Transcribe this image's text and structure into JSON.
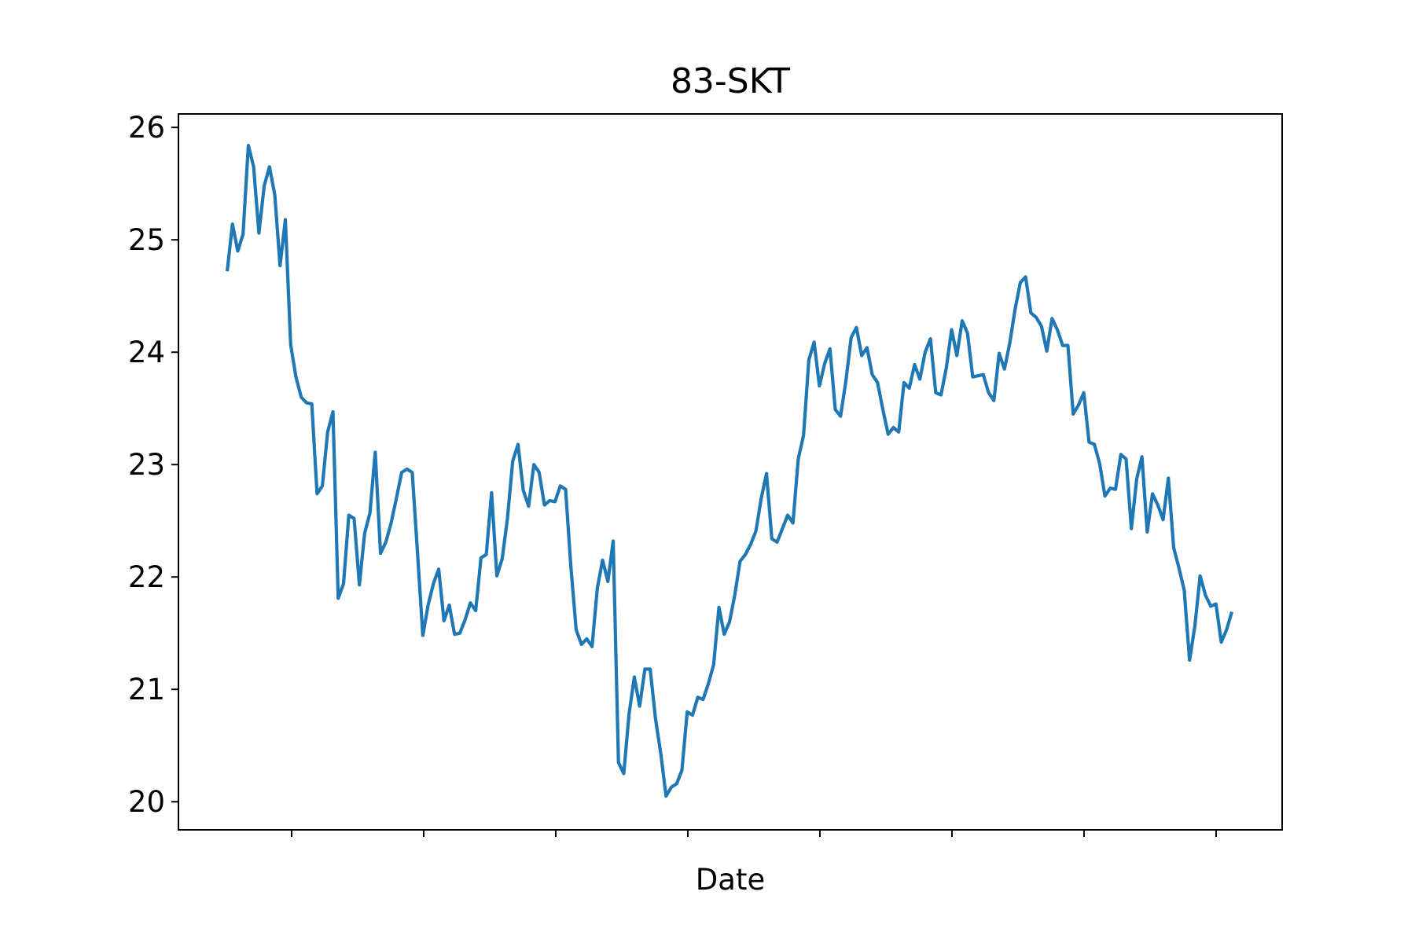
{
  "chart_data": {
    "type": "line",
    "title": "83-SKT",
    "xlabel": "Date",
    "ylabel": "",
    "ylim": [
      19.75,
      26.12
    ],
    "yticks": [
      20,
      21,
      22,
      23,
      24,
      25,
      26
    ],
    "x_tick_labels_visible": false,
    "grid": false,
    "legend": "none",
    "line_color": "#1f77b4",
    "series": [
      {
        "values": [
          24.72,
          25.14,
          24.9,
          25.05,
          25.84,
          25.65,
          25.06,
          25.48,
          25.65,
          25.4,
          24.77,
          25.18,
          24.07,
          23.78,
          23.6,
          23.55,
          23.54,
          22.74,
          22.81,
          23.29,
          23.47,
          21.81,
          21.94,
          22.55,
          22.52,
          21.93,
          22.39,
          22.57,
          23.11,
          22.21,
          22.31,
          22.48,
          22.7,
          22.93,
          22.96,
          22.93,
          22.21,
          21.48,
          21.75,
          21.94,
          22.07,
          21.61,
          21.75,
          21.49,
          21.5,
          21.62,
          21.77,
          21.7,
          22.17,
          22.2,
          22.75,
          22.01,
          22.16,
          22.52,
          23.03,
          23.18,
          22.77,
          22.63,
          23.0,
          22.93,
          22.64,
          22.68,
          22.67,
          22.81,
          22.78,
          22.09,
          21.53,
          21.4,
          21.45,
          21.38,
          21.9,
          22.15,
          21.96,
          22.32,
          20.35,
          20.25,
          20.78,
          21.11,
          20.85,
          21.18,
          21.18,
          20.74,
          20.43,
          20.05,
          20.13,
          20.16,
          20.28,
          20.8,
          20.77,
          20.93,
          20.91,
          21.05,
          21.22,
          21.73,
          21.49,
          21.6,
          21.84,
          22.14,
          22.2,
          22.29,
          22.41,
          22.7,
          22.92,
          22.34,
          22.31,
          22.43,
          22.55,
          22.48,
          23.05,
          23.26,
          23.93,
          24.09,
          23.7,
          23.9,
          24.03,
          23.49,
          23.43,
          23.74,
          24.13,
          24.22,
          23.97,
          24.04,
          23.8,
          23.73,
          23.49,
          23.27,
          23.33,
          23.29,
          23.73,
          23.68,
          23.89,
          23.76,
          24.0,
          24.12,
          23.64,
          23.62,
          23.86,
          24.2,
          23.97,
          24.28,
          24.17,
          23.78,
          23.79,
          23.8,
          23.64,
          23.57,
          23.99,
          23.85,
          24.08,
          24.38,
          24.62,
          24.67,
          24.35,
          24.31,
          24.23,
          24.01,
          24.3,
          24.2,
          24.06,
          24.06,
          23.45,
          23.53,
          23.64,
          23.2,
          23.18,
          23.01,
          22.72,
          22.79,
          22.78,
          23.09,
          23.05,
          22.43,
          22.87,
          23.07,
          22.4,
          22.74,
          22.64,
          22.51,
          22.88,
          22.26,
          22.08,
          21.88,
          21.26,
          21.56,
          22.01,
          21.84,
          21.74,
          21.76,
          21.42,
          21.53,
          21.69
        ]
      }
    ]
  }
}
